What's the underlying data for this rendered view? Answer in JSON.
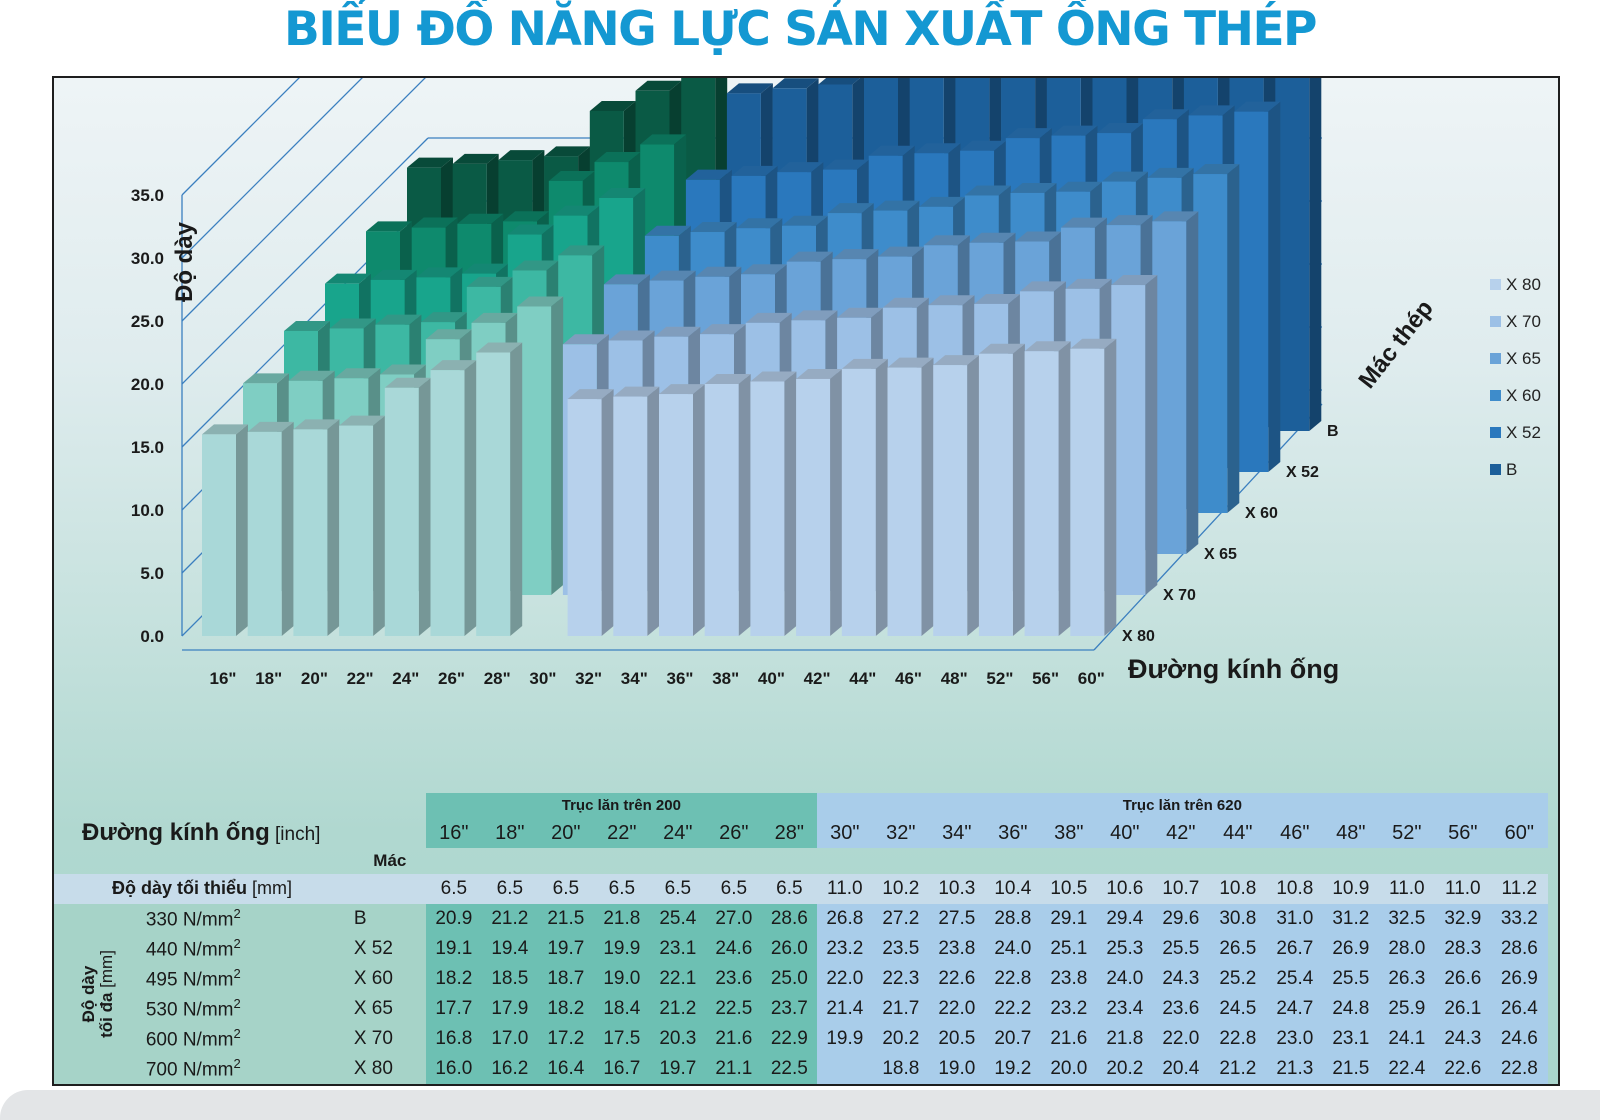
{
  "title": "BIỂU ĐỒ NĂNG LỰC SẢN XUẤT ỐNG THÉP",
  "chart_data": {
    "type": "bar",
    "subtype": "3d-clustered-column",
    "ylabel": "Độ dày",
    "xlabel": "Đường kính ống",
    "zlabel": "Mác thép",
    "ylim": [
      0,
      35
    ],
    "yticks": [
      "0.0",
      "5.0",
      "10.0",
      "15.0",
      "20.0",
      "25.0",
      "30.0",
      "35.0"
    ],
    "categories": [
      "16\"",
      "18\"",
      "20\"",
      "22\"",
      "24\"",
      "26\"",
      "28\"",
      "30\"",
      "32\"",
      "34\"",
      "36\"",
      "38\"",
      "40\"",
      "42\"",
      "44\"",
      "46\"",
      "48\"",
      "52\"",
      "56\"",
      "60\""
    ],
    "legend_position": "right",
    "series": [
      {
        "name": "X 80",
        "values": [
          16.0,
          16.2,
          16.4,
          16.7,
          19.7,
          21.1,
          22.5,
          null,
          18.8,
          19.0,
          19.2,
          20.0,
          20.2,
          20.4,
          21.2,
          21.3,
          21.5,
          22.4,
          22.6,
          22.8
        ]
      },
      {
        "name": "X 70",
        "values": [
          16.8,
          17.0,
          17.2,
          17.5,
          20.3,
          21.6,
          22.9,
          19.9,
          20.2,
          20.5,
          20.7,
          21.6,
          21.8,
          22.0,
          22.8,
          23.0,
          23.1,
          24.1,
          24.3,
          24.6
        ]
      },
      {
        "name": "X 65",
        "values": [
          17.7,
          17.9,
          18.2,
          18.4,
          21.2,
          22.5,
          23.7,
          21.4,
          21.7,
          22.0,
          22.2,
          23.2,
          23.4,
          23.6,
          24.5,
          24.7,
          24.8,
          25.9,
          26.1,
          26.4
        ]
      },
      {
        "name": "X 60",
        "values": [
          18.2,
          18.5,
          18.7,
          19.0,
          22.1,
          23.6,
          25.0,
          22.0,
          22.3,
          22.6,
          22.8,
          23.8,
          24.0,
          24.3,
          25.2,
          25.4,
          25.5,
          26.3,
          26.6,
          26.9
        ]
      },
      {
        "name": "X 52",
        "values": [
          19.1,
          19.4,
          19.7,
          19.9,
          23.1,
          24.6,
          26.0,
          23.2,
          23.5,
          23.8,
          24.0,
          25.1,
          25.3,
          25.5,
          26.5,
          26.7,
          26.9,
          28.0,
          28.3,
          28.6
        ]
      },
      {
        "name": "B",
        "values": [
          20.9,
          21.2,
          21.5,
          21.8,
          25.4,
          27.0,
          28.6,
          26.8,
          27.2,
          27.5,
          28.8,
          29.1,
          29.4,
          29.6,
          30.8,
          31.0,
          31.2,
          32.5,
          32.9,
          33.2
        ]
      }
    ],
    "depth_labels": [
      "X 80",
      "X 70",
      "X 65",
      "X 60",
      "X 52",
      "B"
    ],
    "colors": {
      "green": [
        "#a9d8d8",
        "#7fcec3",
        "#3db8a3",
        "#18a58c",
        "#0e8a6d",
        "#0a5a45"
      ],
      "blue": [
        "#b7d1ec",
        "#9cc0e6",
        "#6aa3d8",
        "#3e8ccb",
        "#2a78bd",
        "#1c5f9a"
      ]
    }
  },
  "table": {
    "header_left": "Trục lăn trên 200",
    "header_right": "Trục lăn trên 620",
    "diameter_label": "Đường kính ống",
    "diameter_unit": "[inch]",
    "mac_label": "Mác",
    "diameters": [
      "16\"",
      "18\"",
      "20\"",
      "22\"",
      "24\"",
      "26\"",
      "28\"",
      "30\"",
      "32\"",
      "34\"",
      "36\"",
      "38\"",
      "40\"",
      "42\"",
      "44\"",
      "46\"",
      "48\"",
      "52\"",
      "56\"",
      "60\""
    ],
    "min_label": "Độ dày tối thiểu",
    "min_unit": "[mm]",
    "min_values": [
      "6.5",
      "6.5",
      "6.5",
      "6.5",
      "6.5",
      "6.5",
      "6.5",
      "11.0",
      "10.2",
      "10.3",
      "10.4",
      "10.5",
      "10.6",
      "10.7",
      "10.8",
      "10.8",
      "10.9",
      "11.0",
      "11.0",
      "11.2"
    ],
    "max_label_1": "Độ dày",
    "max_label_2": "tối đa",
    "max_unit": "[mm]",
    "rows": [
      {
        "strength": "330 N/mm",
        "sup": "2",
        "grade": "B",
        "values": [
          "20.9",
          "21.2",
          "21.5",
          "21.8",
          "25.4",
          "27.0",
          "28.6",
          "26.8",
          "27.2",
          "27.5",
          "28.8",
          "29.1",
          "29.4",
          "29.6",
          "30.8",
          "31.0",
          "31.2",
          "32.5",
          "32.9",
          "33.2"
        ]
      },
      {
        "strength": "440 N/mm",
        "sup": "2",
        "grade": "X 52",
        "values": [
          "19.1",
          "19.4",
          "19.7",
          "19.9",
          "23.1",
          "24.6",
          "26.0",
          "23.2",
          "23.5",
          "23.8",
          "24.0",
          "25.1",
          "25.3",
          "25.5",
          "26.5",
          "26.7",
          "26.9",
          "28.0",
          "28.3",
          "28.6"
        ]
      },
      {
        "strength": "495 N/mm",
        "sup": "2",
        "grade": "X 60",
        "values": [
          "18.2",
          "18.5",
          "18.7",
          "19.0",
          "22.1",
          "23.6",
          "25.0",
          "22.0",
          "22.3",
          "22.6",
          "22.8",
          "23.8",
          "24.0",
          "24.3",
          "25.2",
          "25.4",
          "25.5",
          "26.3",
          "26.6",
          "26.9"
        ]
      },
      {
        "strength": "530 N/mm",
        "sup": "2",
        "grade": "X 65",
        "values": [
          "17.7",
          "17.9",
          "18.2",
          "18.4",
          "21.2",
          "22.5",
          "23.7",
          "21.4",
          "21.7",
          "22.0",
          "22.2",
          "23.2",
          "23.4",
          "23.6",
          "24.5",
          "24.7",
          "24.8",
          "25.9",
          "26.1",
          "26.4"
        ]
      },
      {
        "strength": "600 N/mm",
        "sup": "2",
        "grade": "X 70",
        "values": [
          "16.8",
          "17.0",
          "17.2",
          "17.5",
          "20.3",
          "21.6",
          "22.9",
          "19.9",
          "20.2",
          "20.5",
          "20.7",
          "21.6",
          "21.8",
          "22.0",
          "22.8",
          "23.0",
          "23.1",
          "24.1",
          "24.3",
          "24.6"
        ]
      },
      {
        "strength": "700 N/mm",
        "sup": "2",
        "grade": "X 80",
        "values": [
          "16.0",
          "16.2",
          "16.4",
          "16.7",
          "19.7",
          "21.1",
          "22.5",
          "",
          "18.8",
          "19.0",
          "19.2",
          "20.0",
          "20.2",
          "20.4",
          "21.2",
          "21.3",
          "21.5",
          "22.4",
          "22.6",
          "22.8"
        ]
      }
    ]
  }
}
